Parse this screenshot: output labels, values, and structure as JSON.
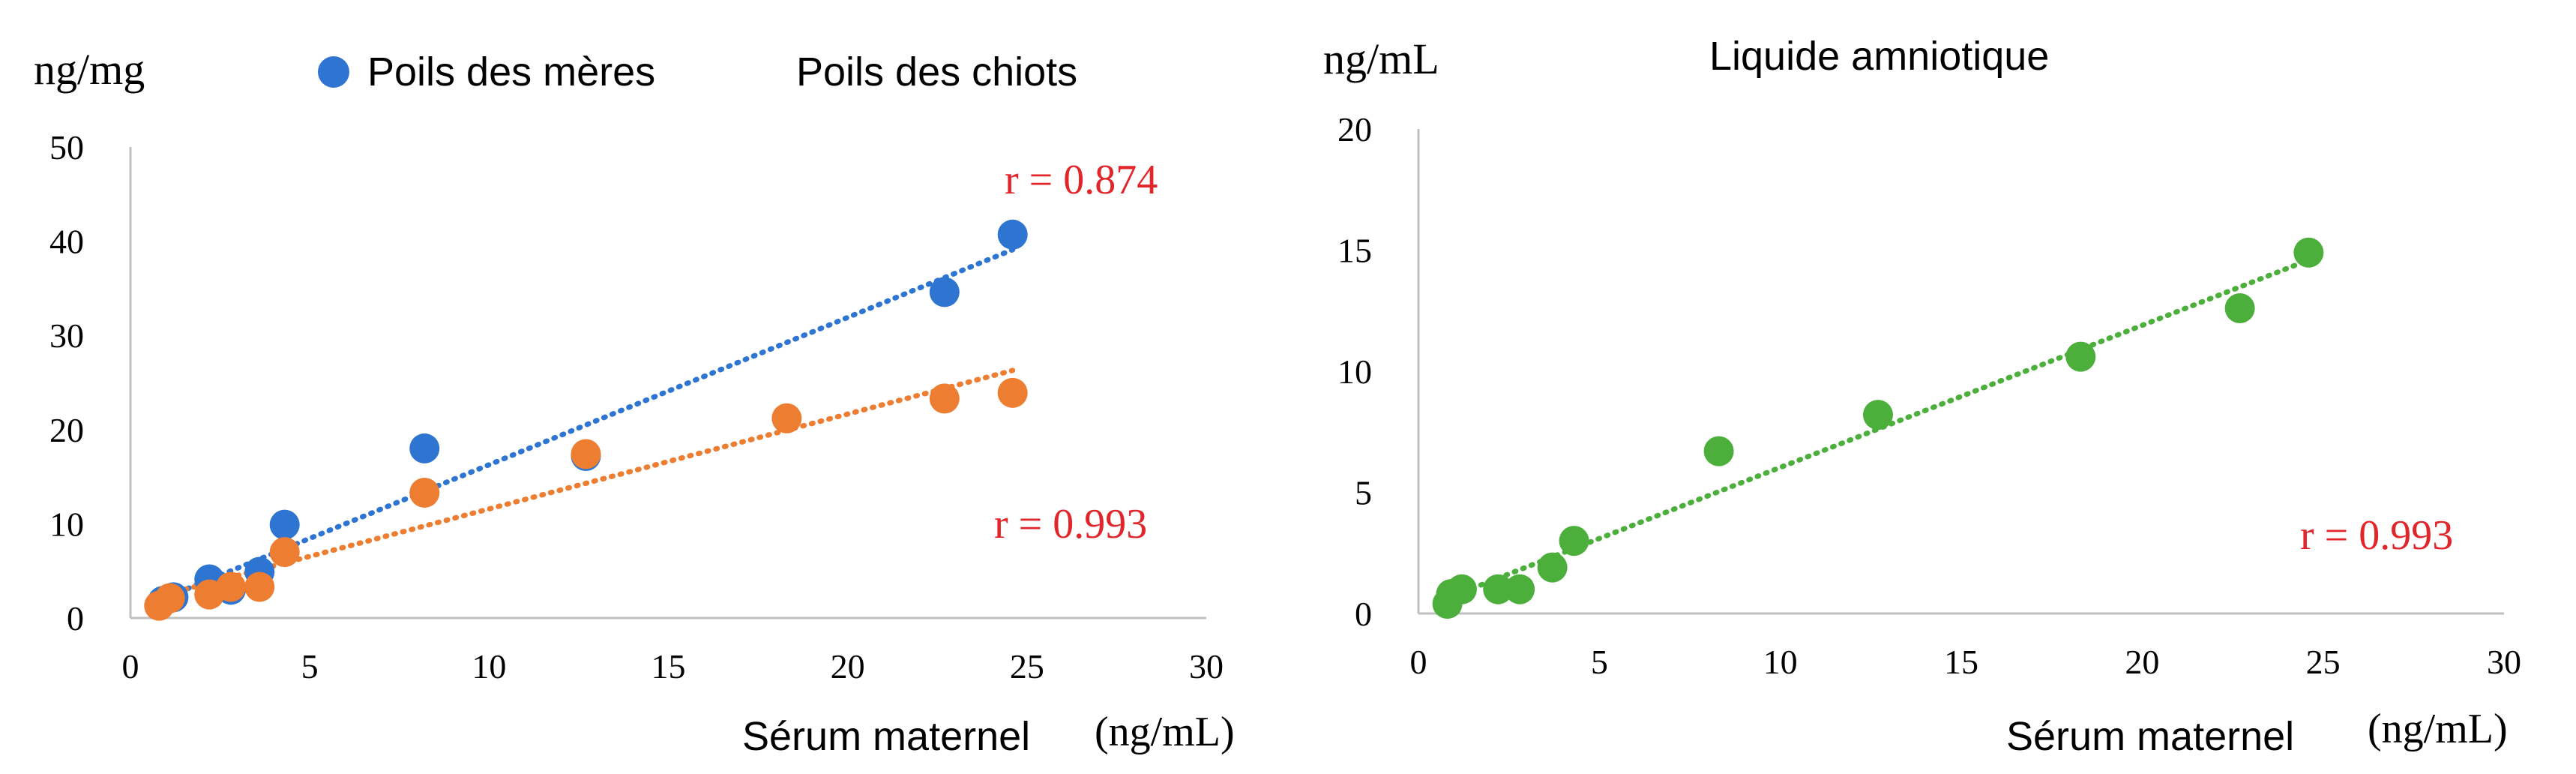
{
  "chart_data": [
    {
      "type": "scatter",
      "title": "",
      "ylabel": "ng/mg",
      "xlabel": "Sérum maternel",
      "xunit": "(ng/mL)",
      "xlim": [
        0,
        30
      ],
      "ylim": [
        0,
        50
      ],
      "xticks": [
        "0",
        "5",
        "10",
        "15",
        "20",
        "25",
        "30"
      ],
      "yticks": [
        "0",
        "10",
        "20",
        "30",
        "40",
        "50"
      ],
      "grid": false,
      "legend_position": "top",
      "series": [
        {
          "name": "Poils des mères",
          "color": "#2e75d1",
          "trendline": true,
          "r_label": "r = 0.874",
          "points": [
            {
              "x": 0.9,
              "y": 1.8
            },
            {
              "x": 1.2,
              "y": 2.2
            },
            {
              "x": 2.2,
              "y": 4.1
            },
            {
              "x": 2.8,
              "y": 3.0
            },
            {
              "x": 3.6,
              "y": 4.9
            },
            {
              "x": 4.3,
              "y": 9.9
            },
            {
              "x": 8.2,
              "y": 18.0
            },
            {
              "x": 12.7,
              "y": 17.2
            },
            {
              "x": 22.7,
              "y": 34.6
            },
            {
              "x": 24.6,
              "y": 40.7
            }
          ]
        },
        {
          "name": "Poils des chiots",
          "color": "#ed7d31",
          "trendline": true,
          "r_label": "r = 0.993",
          "points": [
            {
              "x": 0.8,
              "y": 1.3
            },
            {
              "x": 1.1,
              "y": 2.1
            },
            {
              "x": 2.2,
              "y": 2.5
            },
            {
              "x": 2.8,
              "y": 3.3
            },
            {
              "x": 3.6,
              "y": 3.3
            },
            {
              "x": 4.3,
              "y": 7.0
            },
            {
              "x": 8.2,
              "y": 13.3
            },
            {
              "x": 12.7,
              "y": 17.4
            },
            {
              "x": 18.3,
              "y": 21.2
            },
            {
              "x": 22.7,
              "y": 23.3
            },
            {
              "x": 24.6,
              "y": 23.9
            }
          ]
        }
      ]
    },
    {
      "type": "scatter",
      "title": "Liquide amniotique",
      "ylabel": "ng/mL",
      "xlabel": "Sérum maternel",
      "xunit": "(ng/mL)",
      "xlim": [
        0,
        30
      ],
      "ylim": [
        0,
        20
      ],
      "xticks": [
        "0",
        "5",
        "10",
        "15",
        "20",
        "25",
        "30"
      ],
      "yticks": [
        "0",
        "5",
        "10",
        "15",
        "20"
      ],
      "grid": false,
      "series": [
        {
          "name": "",
          "color": "#4caf3c",
          "trendline": true,
          "r_label": "r = 0.993",
          "points": [
            {
              "x": 0.8,
              "y": 0.4
            },
            {
              "x": 0.9,
              "y": 0.8
            },
            {
              "x": 1.2,
              "y": 1.0
            },
            {
              "x": 2.2,
              "y": 1.0
            },
            {
              "x": 2.8,
              "y": 1.0
            },
            {
              "x": 3.7,
              "y": 1.9
            },
            {
              "x": 4.3,
              "y": 3.0
            },
            {
              "x": 8.3,
              "y": 6.7
            },
            {
              "x": 12.7,
              "y": 8.2
            },
            {
              "x": 18.3,
              "y": 10.6
            },
            {
              "x": 22.7,
              "y": 12.6
            },
            {
              "x": 24.6,
              "y": 14.9
            }
          ]
        }
      ]
    }
  ]
}
